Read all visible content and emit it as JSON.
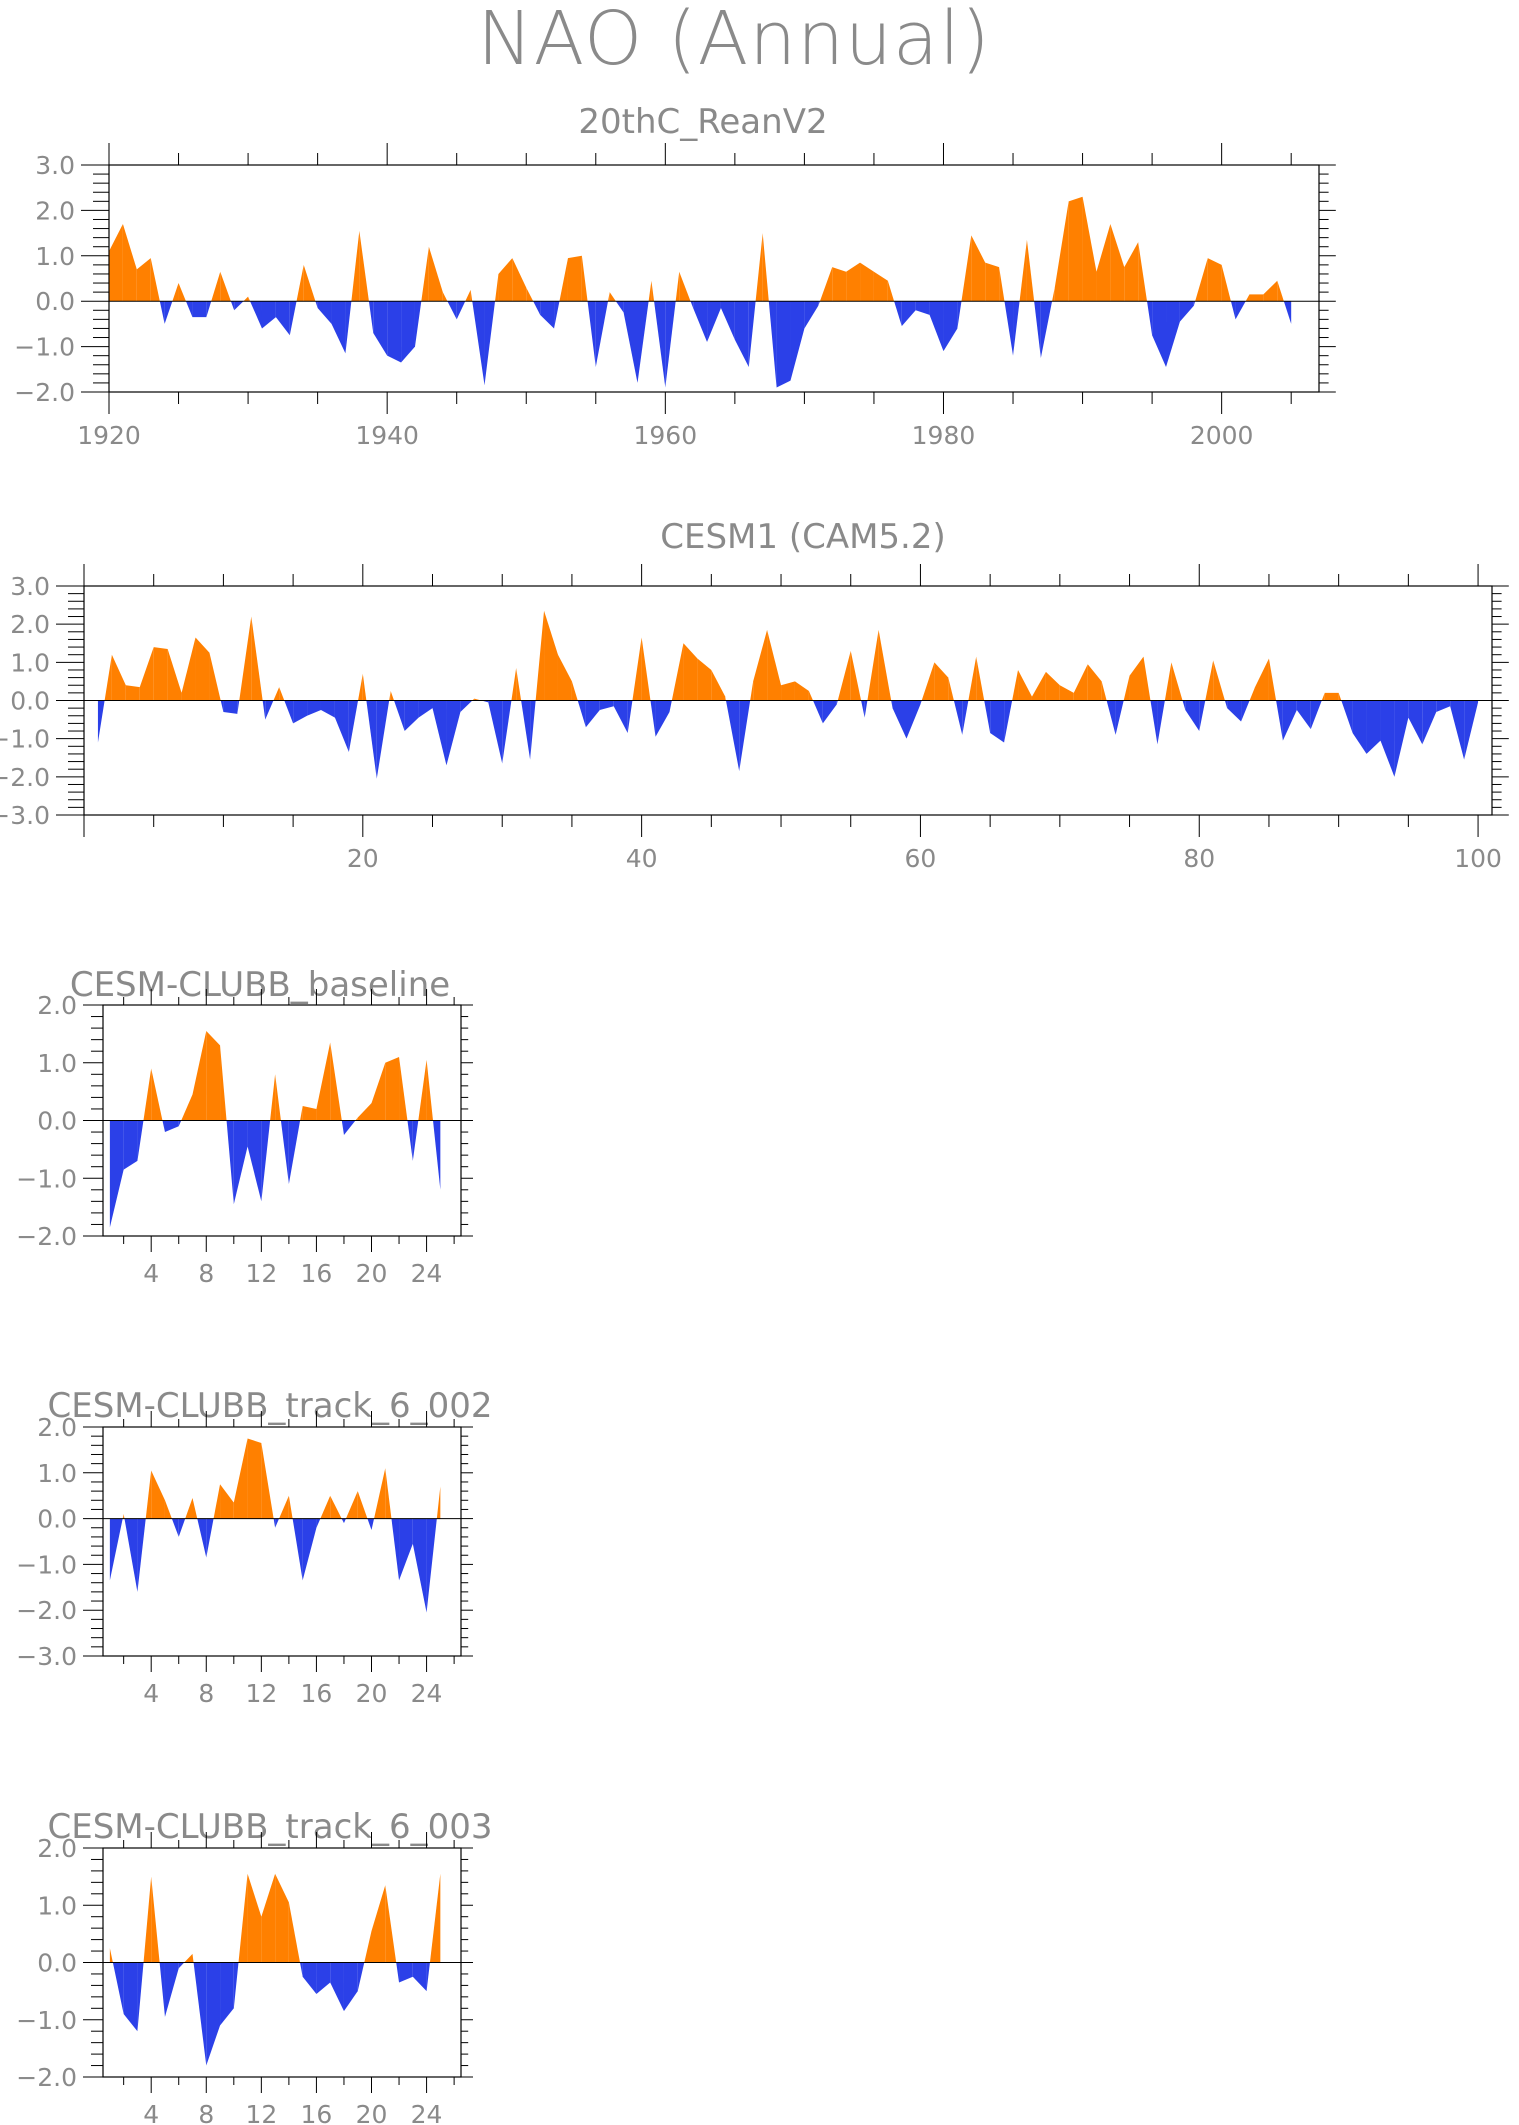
{
  "main_title": "NAO (Annual)",
  "colors": {
    "positive": "#ff8000",
    "negative": "#2b40e8"
  },
  "chart_data": [
    {
      "type": "area",
      "title": "20thC_ReanV2",
      "x_start": 1920,
      "xlim": [
        1920,
        2007
      ],
      "ylim": [
        -2.0,
        3.0
      ],
      "x_ticks": [
        1920,
        1940,
        1960,
        1980,
        2000
      ],
      "y_ticks": [
        -2.0,
        -1.0,
        0.0,
        1.0,
        2.0,
        3.0
      ],
      "y_tick_labels": [
        "−2.0",
        "−1.0",
        "0.0",
        "1.0",
        "2.0",
        "3.0"
      ],
      "values": [
        1.1,
        1.7,
        0.7,
        0.95,
        -0.5,
        0.4,
        -0.35,
        -0.35,
        0.65,
        -0.2,
        0.1,
        -0.6,
        -0.35,
        -0.75,
        0.8,
        -0.15,
        -0.5,
        -1.15,
        1.55,
        -0.7,
        -1.2,
        -1.35,
        -1.0,
        1.2,
        0.2,
        -0.4,
        0.25,
        -1.85,
        0.6,
        0.95,
        0.3,
        -0.3,
        -0.6,
        0.95,
        1.0,
        -1.45,
        0.2,
        -0.25,
        -1.8,
        0.45,
        -1.9,
        0.65,
        -0.15,
        -0.9,
        -0.15,
        -0.85,
        -1.45,
        1.5,
        -1.9,
        -1.75,
        -0.6,
        -0.1,
        0.75,
        0.65,
        0.85,
        0.65,
        0.45,
        -0.55,
        -0.2,
        -0.3,
        -1.1,
        -0.6,
        1.45,
        0.85,
        0.75,
        -1.2,
        1.35,
        -1.25,
        0.3,
        2.2,
        2.3,
        0.65,
        1.7,
        0.75,
        1.3,
        -0.75,
        -1.45,
        -0.45,
        -0.1,
        0.95,
        0.8,
        -0.4,
        0.15,
        0.15,
        0.45,
        -0.5
      ]
    },
    {
      "type": "area",
      "title": "CESM1 (CAM5.2)",
      "x_start": 1,
      "xlim": [
        0,
        101
      ],
      "ylim": [
        -3.0,
        3.0
      ],
      "x_ticks": [
        20,
        40,
        60,
        80,
        100
      ],
      "y_ticks": [
        -3.0,
        -2.0,
        -1.0,
        0.0,
        1.0,
        2.0,
        3.0
      ],
      "y_tick_labels": [
        "−3.0",
        "−2.0",
        "−1.0",
        "0.0",
        "1.0",
        "2.0",
        "3.0"
      ],
      "values": [
        -1.1,
        1.2,
        0.4,
        0.35,
        1.4,
        1.35,
        0.2,
        1.65,
        1.25,
        -0.3,
        -0.35,
        2.2,
        -0.5,
        0.35,
        -0.6,
        -0.4,
        -0.25,
        -0.45,
        -1.35,
        0.7,
        -2.05,
        0.25,
        -0.8,
        -0.45,
        -0.2,
        -1.7,
        -0.3,
        0.05,
        -0.05,
        -1.65,
        0.85,
        -1.55,
        2.35,
        1.2,
        0.5,
        -0.7,
        -0.25,
        -0.15,
        -0.85,
        1.65,
        -0.95,
        -0.3,
        1.5,
        1.1,
        0.8,
        0.1,
        -1.85,
        0.5,
        1.85,
        0.4,
        0.5,
        0.25,
        -0.6,
        -0.1,
        1.3,
        -0.45,
        1.85,
        -0.2,
        -1.0,
        -0.1,
        1.0,
        0.6,
        -0.9,
        1.15,
        -0.85,
        -1.1,
        0.8,
        0.1,
        0.75,
        0.4,
        0.2,
        0.95,
        0.5,
        -0.9,
        0.65,
        1.15,
        -1.15,
        1.0,
        -0.25,
        -0.8,
        1.05,
        -0.2,
        -0.55,
        0.35,
        1.1,
        -1.05,
        -0.25,
        -0.75,
        0.2,
        0.2,
        -0.85,
        -1.4,
        -1.05,
        -2.0,
        -0.45,
        -1.15,
        -0.3,
        -0.15,
        -1.55,
        -0.05
      ]
    },
    {
      "type": "area",
      "title": "CESM-CLUBB_baseline",
      "x_start": 1,
      "xlim": [
        0.5,
        26.5
      ],
      "ylim": [
        -2.0,
        2.0
      ],
      "x_ticks": [
        4,
        8,
        12,
        16,
        20,
        24
      ],
      "y_ticks": [
        -2.0,
        -1.0,
        0.0,
        1.0,
        2.0
      ],
      "y_tick_labels": [
        "−2.0",
        "−1.0",
        "0.0",
        "1.0",
        "2.0"
      ],
      "values": [
        -1.85,
        -0.85,
        -0.7,
        0.9,
        -0.2,
        -0.1,
        0.45,
        1.55,
        1.3,
        -1.45,
        -0.45,
        -1.4,
        0.8,
        -1.1,
        0.25,
        0.2,
        1.35,
        -0.25,
        0.05,
        0.3,
        1.0,
        1.1,
        -0.7,
        1.05,
        -1.2
      ]
    },
    {
      "type": "area",
      "title": "CESM-CLUBB_track_6_002",
      "x_start": 1,
      "xlim": [
        0.5,
        26.5
      ],
      "ylim": [
        -3.0,
        2.0
      ],
      "x_ticks": [
        4,
        8,
        12,
        16,
        20,
        24
      ],
      "y_ticks": [
        -3.0,
        -2.0,
        -1.0,
        0.0,
        1.0,
        2.0
      ],
      "y_tick_labels": [
        "−3.0",
        "−2.0",
        "−1.0",
        "0.0",
        "1.0",
        "2.0"
      ],
      "values": [
        -1.35,
        0.1,
        -1.6,
        1.05,
        0.4,
        -0.4,
        0.45,
        -0.85,
        0.75,
        0.35,
        1.75,
        1.65,
        -0.2,
        0.5,
        -1.35,
        -0.2,
        0.5,
        -0.1,
        0.6,
        -0.25,
        1.1,
        -1.35,
        -0.55,
        -2.05,
        0.7
      ]
    },
    {
      "type": "area",
      "title": "CESM-CLUBB_track_6_003",
      "x_start": 1,
      "xlim": [
        0.5,
        26.5
      ],
      "ylim": [
        -2.0,
        2.0
      ],
      "x_ticks": [
        4,
        8,
        12,
        16,
        20,
        24
      ],
      "y_ticks": [
        -2.0,
        -1.0,
        0.0,
        1.0,
        2.0
      ],
      "y_tick_labels": [
        "−2.0",
        "−1.0",
        "0.0",
        "1.0",
        "2.0"
      ],
      "values": [
        0.25,
        -0.9,
        -1.2,
        1.5,
        -0.95,
        -0.1,
        0.15,
        -1.8,
        -1.1,
        -0.8,
        1.55,
        0.8,
        1.55,
        1.05,
        -0.25,
        -0.55,
        -0.35,
        -0.85,
        -0.5,
        0.55,
        1.35,
        -0.35,
        -0.25,
        -0.5,
        1.55
      ]
    }
  ]
}
